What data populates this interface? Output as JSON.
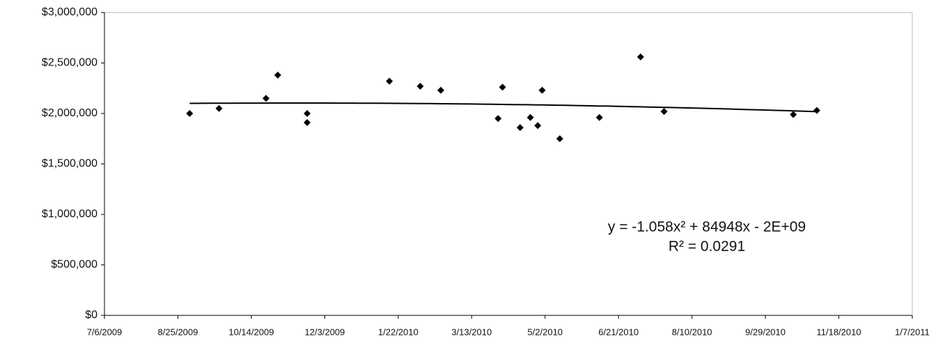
{
  "chart_data": {
    "type": "scatter",
    "x": [
      40058,
      40078,
      40110,
      40118,
      40138,
      40138,
      40194,
      40215,
      40229,
      40268,
      40271,
      40283,
      40290,
      40295,
      40298,
      40310,
      40337,
      40365,
      40381,
      40469,
      40485
    ],
    "values": [
      2000000,
      2050000,
      2150000,
      2380000,
      2000000,
      1910000,
      2320000,
      2270000,
      2230000,
      1950000,
      2260000,
      1860000,
      1960000,
      1880000,
      2230000,
      1750000,
      1960000,
      2560000,
      2020000,
      1990000,
      2030000
    ],
    "color": "#000000",
    "trendline": "polynomial",
    "annotations": [
      "y = -1.058x² + 84948x - 2E+09",
      "R² = 0.0291"
    ],
    "xlim": [
      40000,
      40550
    ],
    "xticks": [
      {
        "value": 40000,
        "label": "7/6/2009"
      },
      {
        "value": 40050,
        "label": "8/25/2009"
      },
      {
        "value": 40100,
        "label": "10/14/2009"
      },
      {
        "value": 40150,
        "label": "12/3/2009"
      },
      {
        "value": 40200,
        "label": "1/22/2010"
      },
      {
        "value": 40250,
        "label": "3/13/2010"
      },
      {
        "value": 40300,
        "label": "5/2/2010"
      },
      {
        "value": 40350,
        "label": "6/21/2010"
      },
      {
        "value": 40400,
        "label": "8/10/2010"
      },
      {
        "value": 40450,
        "label": "9/29/2010"
      },
      {
        "value": 40500,
        "label": "11/18/2010"
      },
      {
        "value": 40550,
        "label": "1/7/2011"
      }
    ],
    "ylim": [
      0,
      3000000
    ],
    "yticks": [
      {
        "value": 0,
        "label": "$0"
      },
      {
        "value": 500000,
        "label": "$500,000"
      },
      {
        "value": 1000000,
        "label": "$1,000,000"
      },
      {
        "value": 1500000,
        "label": "$1,500,000"
      },
      {
        "value": 2000000,
        "label": "$2,000,000"
      },
      {
        "value": 2500000,
        "label": "$2,500,000"
      },
      {
        "value": 3000000,
        "label": "$3,000,000"
      }
    ]
  }
}
